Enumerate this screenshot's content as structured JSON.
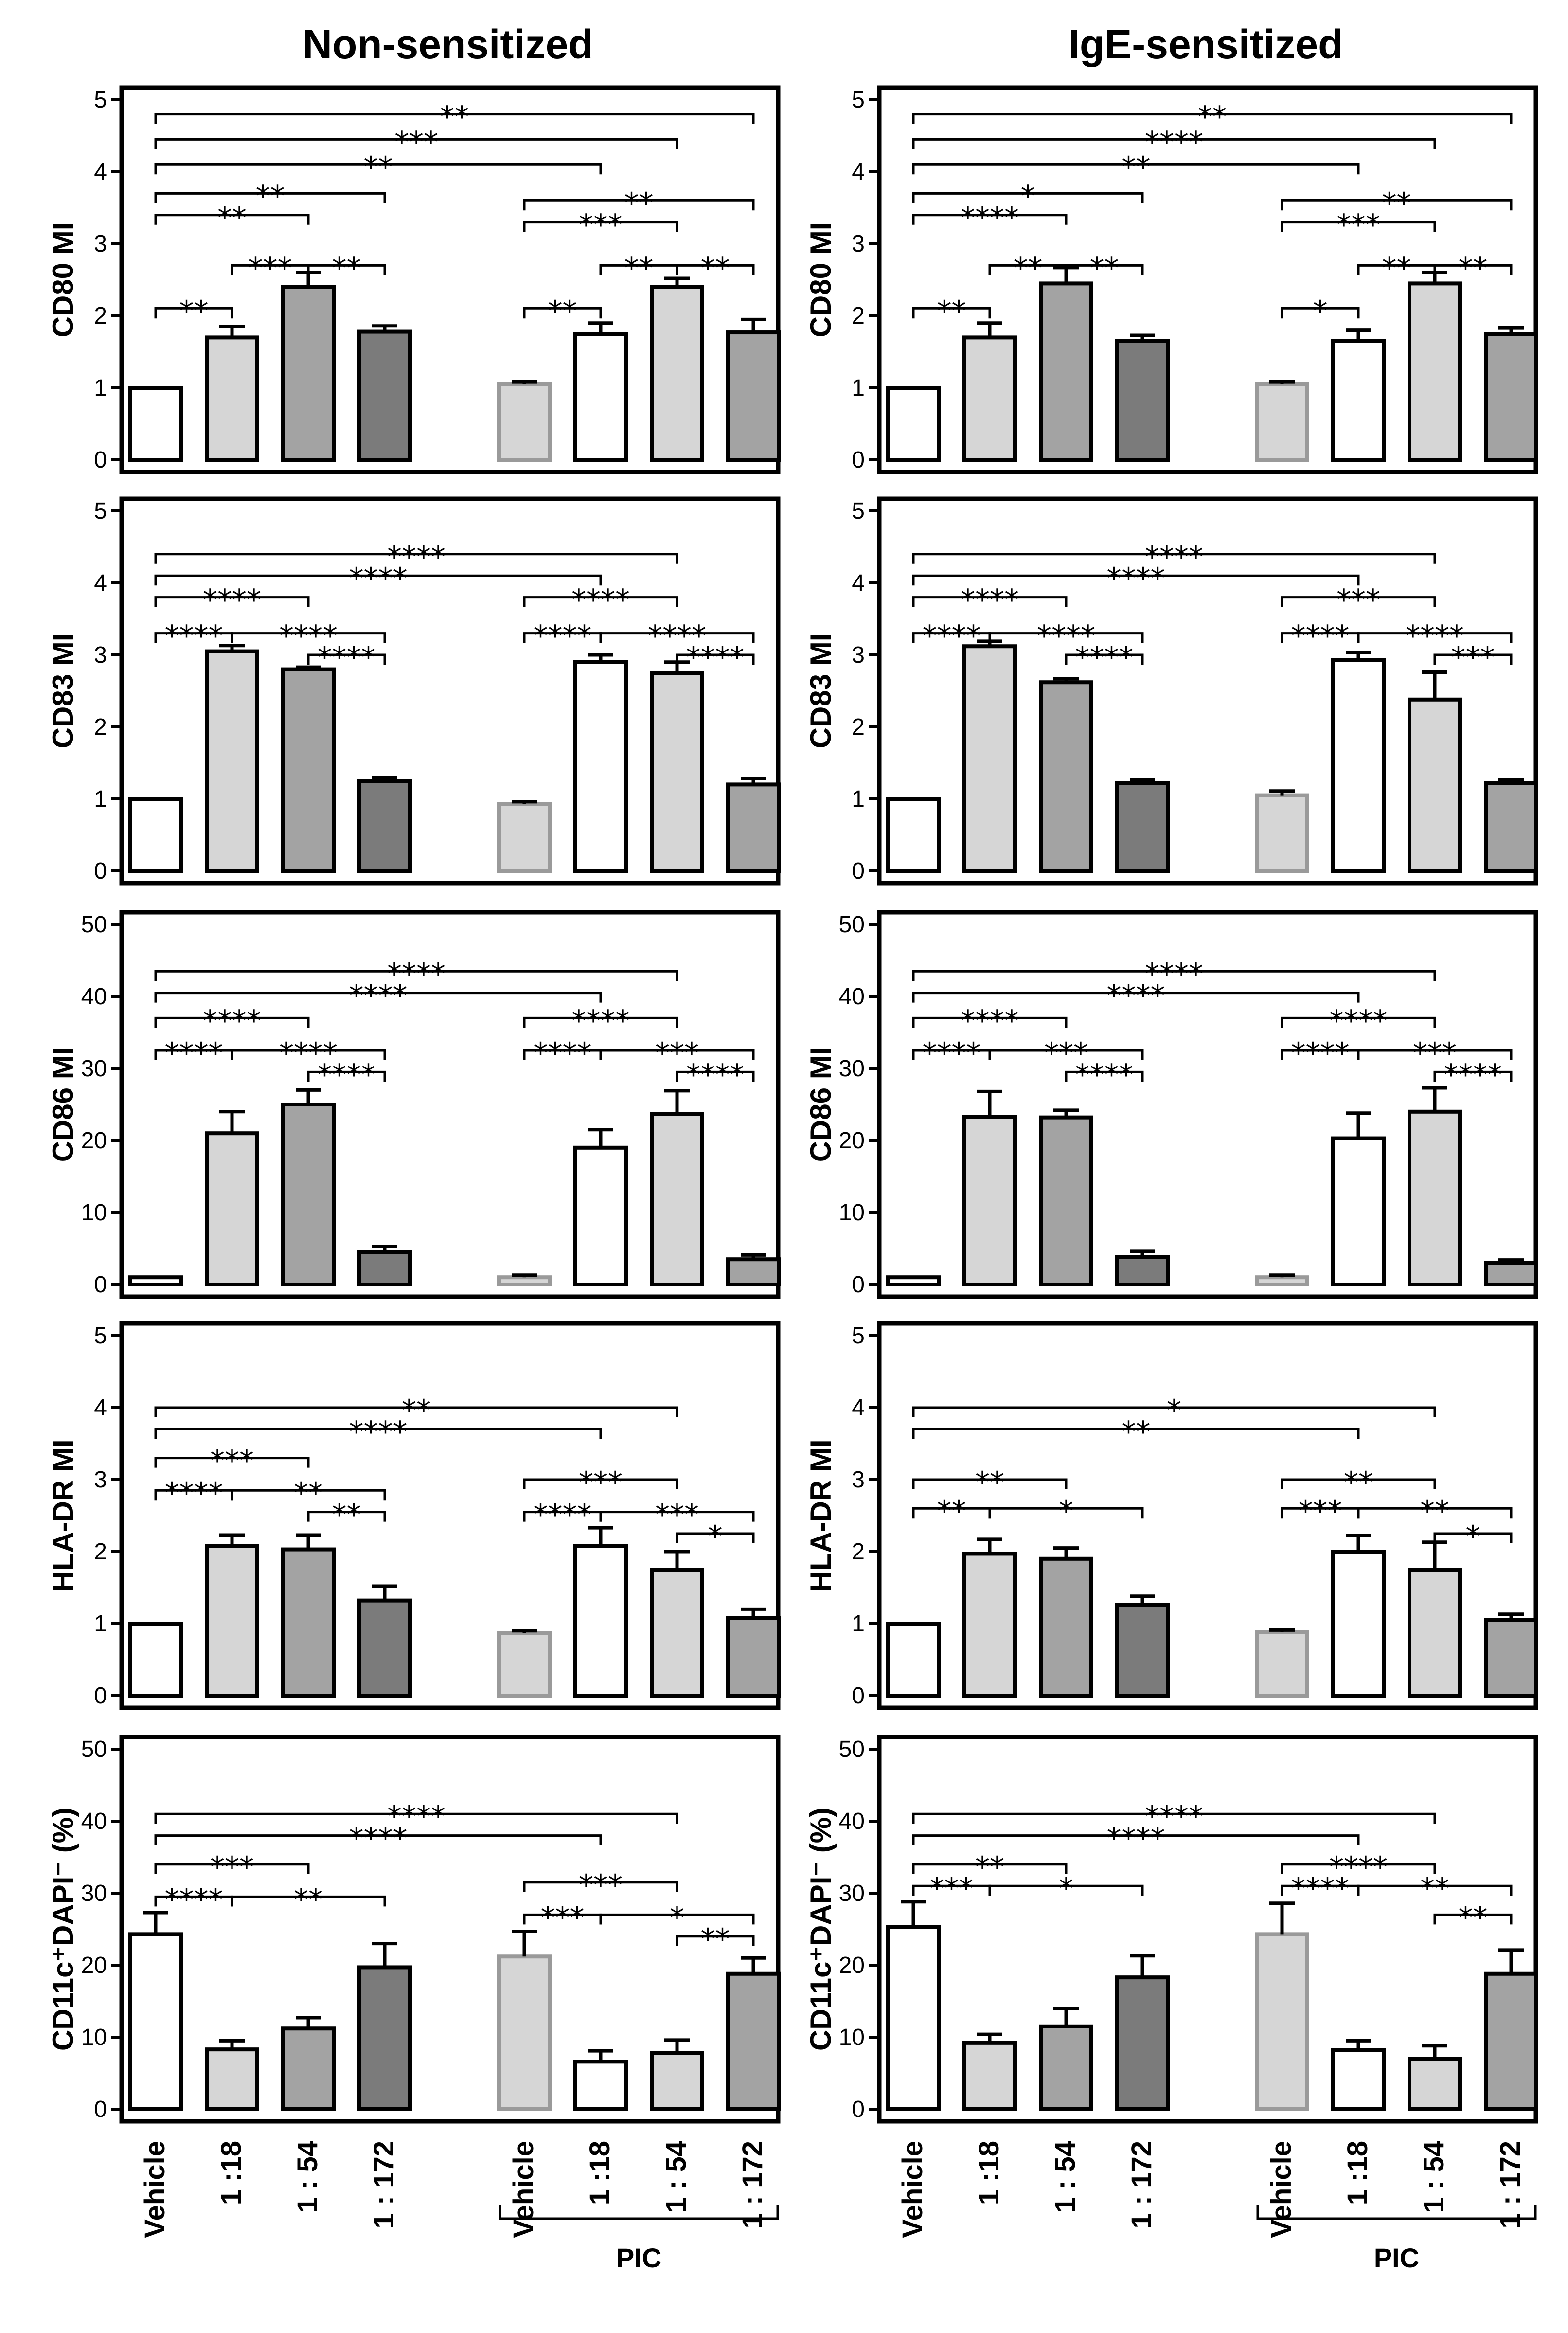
{
  "columns": [
    "Non-sensitized",
    "IgE-sensitized"
  ],
  "group_label": "PIC",
  "categories": [
    "Vehicle",
    "1 :18",
    "1 : 54",
    "1 : 172",
    "Vehicle",
    "1 :18",
    "1 : 54",
    "1 : 172"
  ],
  "bar_fills": [
    "#ffffff",
    "#d6d6d6",
    "#a3a3a3",
    "#7b7b7b",
    "#d6d6d6",
    "#ffffff",
    "#d6d6d6",
    "#a3a3a3"
  ],
  "bar_strokes": [
    "#000000",
    "#000000",
    "#000000",
    "#000000",
    "#9a9a9a",
    "#000000",
    "#000000",
    "#000000"
  ],
  "chart_data": [
    {
      "type": "bar",
      "ylabel": "CD80 MI",
      "column": "Non-sensitized",
      "ylim": [
        0,
        5
      ],
      "yticks": [
        0,
        1,
        2,
        3,
        4,
        5
      ],
      "values": [
        1.0,
        1.7,
        2.4,
        1.78,
        1.05,
        1.75,
        2.4,
        1.77
      ],
      "errors": [
        0,
        0.15,
        0.2,
        0.08,
        0.03,
        0.15,
        0.12,
        0.18
      ],
      "brackets": [
        {
          "a": 0,
          "b": 7,
          "y": 4.8,
          "label": "**"
        },
        {
          "a": 0,
          "b": 6,
          "y": 4.45,
          "label": "***"
        },
        {
          "a": 0,
          "b": 5,
          "y": 4.1,
          "label": "**"
        },
        {
          "a": 0,
          "b": 3,
          "y": 3.7,
          "label": "**"
        },
        {
          "a": 0,
          "b": 2,
          "y": 3.4,
          "label": "**"
        },
        {
          "a": 1,
          "b": 2,
          "y": 2.7,
          "label": "***"
        },
        {
          "a": 2,
          "b": 3,
          "y": 2.7,
          "label": "**"
        },
        {
          "a": 0,
          "b": 1,
          "y": 2.1,
          "label": "**"
        },
        {
          "a": 4,
          "b": 7,
          "y": 3.6,
          "label": "**"
        },
        {
          "a": 4,
          "b": 6,
          "y": 3.3,
          "label": "***"
        },
        {
          "a": 5,
          "b": 6,
          "y": 2.7,
          "label": "**"
        },
        {
          "a": 6,
          "b": 7,
          "y": 2.7,
          "label": "**"
        },
        {
          "a": 4,
          "b": 5,
          "y": 2.1,
          "label": "**"
        }
      ]
    },
    {
      "type": "bar",
      "ylabel": "CD80 MI",
      "column": "IgE-sensitized",
      "ylim": [
        0,
        5
      ],
      "yticks": [
        0,
        1,
        2,
        3,
        4,
        5
      ],
      "values": [
        1.0,
        1.7,
        2.45,
        1.65,
        1.05,
        1.65,
        2.45,
        1.75
      ],
      "errors": [
        0,
        0.2,
        0.22,
        0.08,
        0.03,
        0.15,
        0.15,
        0.08
      ],
      "brackets": [
        {
          "a": 0,
          "b": 7,
          "y": 4.8,
          "label": "**"
        },
        {
          "a": 0,
          "b": 6,
          "y": 4.45,
          "label": "****"
        },
        {
          "a": 0,
          "b": 5,
          "y": 4.1,
          "label": "**"
        },
        {
          "a": 0,
          "b": 3,
          "y": 3.7,
          "label": "*"
        },
        {
          "a": 0,
          "b": 2,
          "y": 3.4,
          "label": "****"
        },
        {
          "a": 1,
          "b": 2,
          "y": 2.7,
          "label": "**"
        },
        {
          "a": 2,
          "b": 3,
          "y": 2.7,
          "label": "**"
        },
        {
          "a": 0,
          "b": 1,
          "y": 2.1,
          "label": "**"
        },
        {
          "a": 4,
          "b": 7,
          "y": 3.6,
          "label": "**"
        },
        {
          "a": 4,
          "b": 6,
          "y": 3.3,
          "label": "***"
        },
        {
          "a": 5,
          "b": 6,
          "y": 2.7,
          "label": "**"
        },
        {
          "a": 6,
          "b": 7,
          "y": 2.7,
          "label": "**"
        },
        {
          "a": 4,
          "b": 5,
          "y": 2.1,
          "label": "*"
        }
      ]
    },
    {
      "type": "bar",
      "ylabel": "CD83 MI",
      "column": "Non-sensitized",
      "ylim": [
        0,
        5
      ],
      "yticks": [
        0,
        1,
        2,
        3,
        4,
        5
      ],
      "values": [
        1.0,
        3.05,
        2.8,
        1.25,
        0.93,
        2.9,
        2.75,
        1.2
      ],
      "errors": [
        0,
        0.08,
        0.03,
        0.05,
        0.03,
        0.1,
        0.15,
        0.08
      ],
      "brackets": [
        {
          "a": 0,
          "b": 6,
          "y": 4.4,
          "label": "****"
        },
        {
          "a": 0,
          "b": 5,
          "y": 4.1,
          "label": "****"
        },
        {
          "a": 0,
          "b": 2,
          "y": 3.8,
          "label": "****"
        },
        {
          "a": 0,
          "b": 1,
          "y": 3.3,
          "label": "****"
        },
        {
          "a": 1,
          "b": 3,
          "y": 3.3,
          "label": "****"
        },
        {
          "a": 2,
          "b": 3,
          "y": 3.0,
          "label": "****"
        },
        {
          "a": 4,
          "b": 6,
          "y": 3.8,
          "label": "****"
        },
        {
          "a": 4,
          "b": 5,
          "y": 3.3,
          "label": "****"
        },
        {
          "a": 5,
          "b": 7,
          "y": 3.3,
          "label": "****"
        },
        {
          "a": 6,
          "b": 7,
          "y": 3.0,
          "label": "****"
        }
      ]
    },
    {
      "type": "bar",
      "ylabel": "CD83 MI",
      "column": "IgE-sensitized",
      "ylim": [
        0,
        5
      ],
      "yticks": [
        0,
        1,
        2,
        3,
        4,
        5
      ],
      "values": [
        1.0,
        3.12,
        2.62,
        1.22,
        1.05,
        2.93,
        2.38,
        1.22
      ],
      "errors": [
        0,
        0.07,
        0.05,
        0.05,
        0.06,
        0.1,
        0.38,
        0.05
      ],
      "brackets": [
        {
          "a": 0,
          "b": 6,
          "y": 4.4,
          "label": "****"
        },
        {
          "a": 0,
          "b": 5,
          "y": 4.1,
          "label": "****"
        },
        {
          "a": 0,
          "b": 2,
          "y": 3.8,
          "label": "****"
        },
        {
          "a": 0,
          "b": 1,
          "y": 3.3,
          "label": "****"
        },
        {
          "a": 1,
          "b": 3,
          "y": 3.3,
          "label": "****"
        },
        {
          "a": 2,
          "b": 3,
          "y": 3.0,
          "label": "****"
        },
        {
          "a": 4,
          "b": 6,
          "y": 3.8,
          "label": "***"
        },
        {
          "a": 4,
          "b": 5,
          "y": 3.3,
          "label": "****"
        },
        {
          "a": 5,
          "b": 7,
          "y": 3.3,
          "label": "****"
        },
        {
          "a": 6,
          "b": 7,
          "y": 3.0,
          "label": "***"
        }
      ]
    },
    {
      "type": "bar",
      "ylabel": "CD86 MI",
      "column": "Non-sensitized",
      "ylim": [
        0,
        50
      ],
      "yticks": [
        0,
        10,
        20,
        30,
        40,
        50
      ],
      "values": [
        1.0,
        21.0,
        25.0,
        4.5,
        1.0,
        19.0,
        23.7,
        3.5
      ],
      "errors": [
        0,
        3.0,
        2.0,
        0.8,
        0.3,
        2.5,
        3.2,
        0.6
      ],
      "brackets": [
        {
          "a": 0,
          "b": 6,
          "y": 43.5,
          "label": "****"
        },
        {
          "a": 0,
          "b": 5,
          "y": 40.5,
          "label": "****"
        },
        {
          "a": 0,
          "b": 2,
          "y": 37.0,
          "label": "****"
        },
        {
          "a": 0,
          "b": 1,
          "y": 32.5,
          "label": "****"
        },
        {
          "a": 1,
          "b": 3,
          "y": 32.5,
          "label": "****"
        },
        {
          "a": 2,
          "b": 3,
          "y": 29.5,
          "label": "****"
        },
        {
          "a": 4,
          "b": 6,
          "y": 37.0,
          "label": "****"
        },
        {
          "a": 4,
          "b": 5,
          "y": 32.5,
          "label": "****"
        },
        {
          "a": 5,
          "b": 7,
          "y": 32.5,
          "label": "***"
        },
        {
          "a": 6,
          "b": 7,
          "y": 29.5,
          "label": "****"
        }
      ]
    },
    {
      "type": "bar",
      "ylabel": "CD86 MI",
      "column": "IgE-sensitized",
      "ylim": [
        0,
        50
      ],
      "yticks": [
        0,
        10,
        20,
        30,
        40,
        50
      ],
      "values": [
        1.0,
        23.3,
        23.2,
        3.8,
        1.0,
        20.3,
        24.0,
        3.0
      ],
      "errors": [
        0,
        3.5,
        1.0,
        0.8,
        0.3,
        3.5,
        3.3,
        0.4
      ],
      "brackets": [
        {
          "a": 0,
          "b": 6,
          "y": 43.5,
          "label": "****"
        },
        {
          "a": 0,
          "b": 5,
          "y": 40.5,
          "label": "****"
        },
        {
          "a": 0,
          "b": 2,
          "y": 37.0,
          "label": "****"
        },
        {
          "a": 0,
          "b": 1,
          "y": 32.5,
          "label": "****"
        },
        {
          "a": 1,
          "b": 3,
          "y": 32.5,
          "label": "***"
        },
        {
          "a": 2,
          "b": 3,
          "y": 29.5,
          "label": "****"
        },
        {
          "a": 4,
          "b": 6,
          "y": 37.0,
          "label": "****"
        },
        {
          "a": 4,
          "b": 5,
          "y": 32.5,
          "label": "****"
        },
        {
          "a": 5,
          "b": 7,
          "y": 32.5,
          "label": "***"
        },
        {
          "a": 6,
          "b": 7,
          "y": 29.5,
          "label": "****"
        }
      ]
    },
    {
      "type": "bar",
      "ylabel": "HLA-DR MI",
      "column": "Non-sensitized",
      "ylim": [
        0,
        5
      ],
      "yticks": [
        0,
        1,
        2,
        3,
        4,
        5
      ],
      "values": [
        1.0,
        2.08,
        2.03,
        1.32,
        0.87,
        2.08,
        1.75,
        1.08
      ],
      "errors": [
        0,
        0.15,
        0.2,
        0.2,
        0.03,
        0.25,
        0.25,
        0.12
      ],
      "brackets": [
        {
          "a": 0,
          "b": 6,
          "y": 4.0,
          "label": "**"
        },
        {
          "a": 0,
          "b": 5,
          "y": 3.7,
          "label": "****"
        },
        {
          "a": 0,
          "b": 2,
          "y": 3.3,
          "label": "***"
        },
        {
          "a": 0,
          "b": 1,
          "y": 2.85,
          "label": "****"
        },
        {
          "a": 1,
          "b": 3,
          "y": 2.85,
          "label": "**"
        },
        {
          "a": 2,
          "b": 3,
          "y": 2.55,
          "label": "**"
        },
        {
          "a": 4,
          "b": 6,
          "y": 3.0,
          "label": "***"
        },
        {
          "a": 4,
          "b": 5,
          "y": 2.55,
          "label": "****"
        },
        {
          "a": 5,
          "b": 7,
          "y": 2.55,
          "label": "***"
        },
        {
          "a": 6,
          "b": 7,
          "y": 2.25,
          "label": "*"
        }
      ]
    },
    {
      "type": "bar",
      "ylabel": "HLA-DR MI",
      "column": "IgE-sensitized",
      "ylim": [
        0,
        5
      ],
      "yticks": [
        0,
        1,
        2,
        3,
        4,
        5
      ],
      "values": [
        1.0,
        1.97,
        1.9,
        1.26,
        0.88,
        2.0,
        1.75,
        1.05
      ],
      "errors": [
        0,
        0.2,
        0.15,
        0.12,
        0.03,
        0.22,
        0.38,
        0.08
      ],
      "brackets": [
        {
          "a": 0,
          "b": 6,
          "y": 4.0,
          "label": "*"
        },
        {
          "a": 0,
          "b": 5,
          "y": 3.7,
          "label": "**"
        },
        {
          "a": 0,
          "b": 2,
          "y": 3.0,
          "label": "**"
        },
        {
          "a": 0,
          "b": 1,
          "y": 2.6,
          "label": "**"
        },
        {
          "a": 1,
          "b": 3,
          "y": 2.6,
          "label": "*"
        },
        {
          "a": 4,
          "b": 6,
          "y": 3.0,
          "label": "**"
        },
        {
          "a": 4,
          "b": 5,
          "y": 2.6,
          "label": "***"
        },
        {
          "a": 5,
          "b": 7,
          "y": 2.6,
          "label": "**"
        },
        {
          "a": 6,
          "b": 7,
          "y": 2.25,
          "label": "*"
        }
      ]
    },
    {
      "type": "bar",
      "ylabel": "CD11c⁺DAPI⁻ (%)",
      "column": "Non-sensitized",
      "ylim": [
        0,
        50
      ],
      "yticks": [
        0,
        10,
        20,
        30,
        40,
        50
      ],
      "values": [
        24.3,
        8.3,
        11.2,
        19.7,
        21.2,
        6.6,
        7.8,
        18.8
      ],
      "errors": [
        3.0,
        1.2,
        1.5,
        3.3,
        3.5,
        1.5,
        1.8,
        2.2
      ],
      "brackets": [
        {
          "a": 0,
          "b": 6,
          "y": 41.0,
          "label": "****"
        },
        {
          "a": 0,
          "b": 5,
          "y": 38.0,
          "label": "****"
        },
        {
          "a": 0,
          "b": 2,
          "y": 34.0,
          "label": "***"
        },
        {
          "a": 0,
          "b": 1,
          "y": 29.5,
          "label": "****"
        },
        {
          "a": 1,
          "b": 3,
          "y": 29.5,
          "label": "**"
        },
        {
          "a": 4,
          "b": 6,
          "y": 31.5,
          "label": "***"
        },
        {
          "a": 4,
          "b": 5,
          "y": 27.0,
          "label": "***"
        },
        {
          "a": 5,
          "b": 7,
          "y": 27.0,
          "label": "*"
        },
        {
          "a": 6,
          "b": 7,
          "y": 24.0,
          "label": "**"
        }
      ]
    },
    {
      "type": "bar",
      "ylabel": "CD11c⁺DAPI⁻ (%)",
      "column": "IgE-sensitized",
      "ylim": [
        0,
        50
      ],
      "yticks": [
        0,
        10,
        20,
        30,
        40,
        50
      ],
      "values": [
        25.3,
        9.2,
        11.5,
        18.3,
        24.3,
        8.2,
        7.0,
        18.8
      ],
      "errors": [
        3.5,
        1.2,
        2.5,
        3.0,
        4.3,
        1.3,
        1.8,
        3.3
      ],
      "brackets": [
        {
          "a": 0,
          "b": 6,
          "y": 41.0,
          "label": "****"
        },
        {
          "a": 0,
          "b": 5,
          "y": 38.0,
          "label": "****"
        },
        {
          "a": 0,
          "b": 2,
          "y": 34.0,
          "label": "**"
        },
        {
          "a": 0,
          "b": 1,
          "y": 31.0,
          "label": "***"
        },
        {
          "a": 1,
          "b": 3,
          "y": 31.0,
          "label": "*"
        },
        {
          "a": 4,
          "b": 6,
          "y": 34.0,
          "label": "****"
        },
        {
          "a": 4,
          "b": 5,
          "y": 31.0,
          "label": "****"
        },
        {
          "a": 5,
          "b": 7,
          "y": 31.0,
          "label": "**"
        },
        {
          "a": 6,
          "b": 7,
          "y": 27.0,
          "label": "**"
        }
      ]
    }
  ]
}
